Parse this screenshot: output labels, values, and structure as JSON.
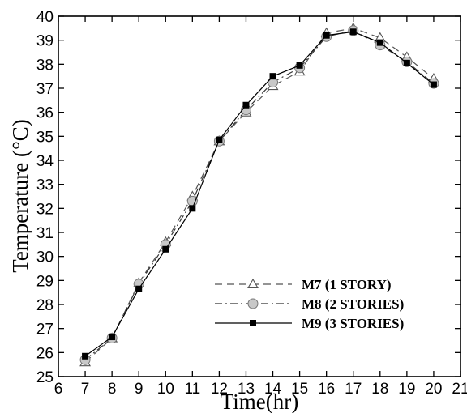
{
  "chart_data": {
    "type": "line",
    "xlabel": "Time(hr)",
    "ylabel": "Temperature (°C)",
    "xlim": [
      6,
      21
    ],
    "ylim": [
      25,
      40
    ],
    "xticks": [
      6,
      7,
      8,
      9,
      10,
      11,
      12,
      13,
      14,
      15,
      16,
      17,
      18,
      19,
      20,
      21
    ],
    "yticks": [
      25,
      26,
      27,
      28,
      29,
      30,
      31,
      32,
      33,
      34,
      35,
      36,
      37,
      38,
      39,
      40
    ],
    "grid": false,
    "legend_position": "bottom-right",
    "x": [
      7,
      8,
      9,
      10,
      11,
      12,
      13,
      14,
      15,
      16,
      17,
      18,
      19,
      20
    ],
    "series": [
      {
        "name": "M7 (1 STORY)",
        "values": [
          25.6,
          26.6,
          28.9,
          30.6,
          32.5,
          34.8,
          36.0,
          37.1,
          37.7,
          39.3,
          39.5,
          39.1,
          38.3,
          37.4
        ],
        "marker": "triangle",
        "line_style": "dashed",
        "color": "#555555"
      },
      {
        "name": "M8 (2 STORIES)",
        "values": [
          25.7,
          26.6,
          28.85,
          30.5,
          32.3,
          34.8,
          36.1,
          37.25,
          37.85,
          39.15,
          39.4,
          38.8,
          38.1,
          37.2
        ],
        "marker": "circle",
        "line_style": "dashdot",
        "color": "#333333"
      },
      {
        "name": "M9 (3 STORIES)",
        "values": [
          25.85,
          26.65,
          28.65,
          30.3,
          32.0,
          34.85,
          36.3,
          37.5,
          37.95,
          39.2,
          39.35,
          38.9,
          38.05,
          37.15
        ],
        "marker": "square",
        "line_style": "solid",
        "color": "#000000"
      }
    ]
  }
}
